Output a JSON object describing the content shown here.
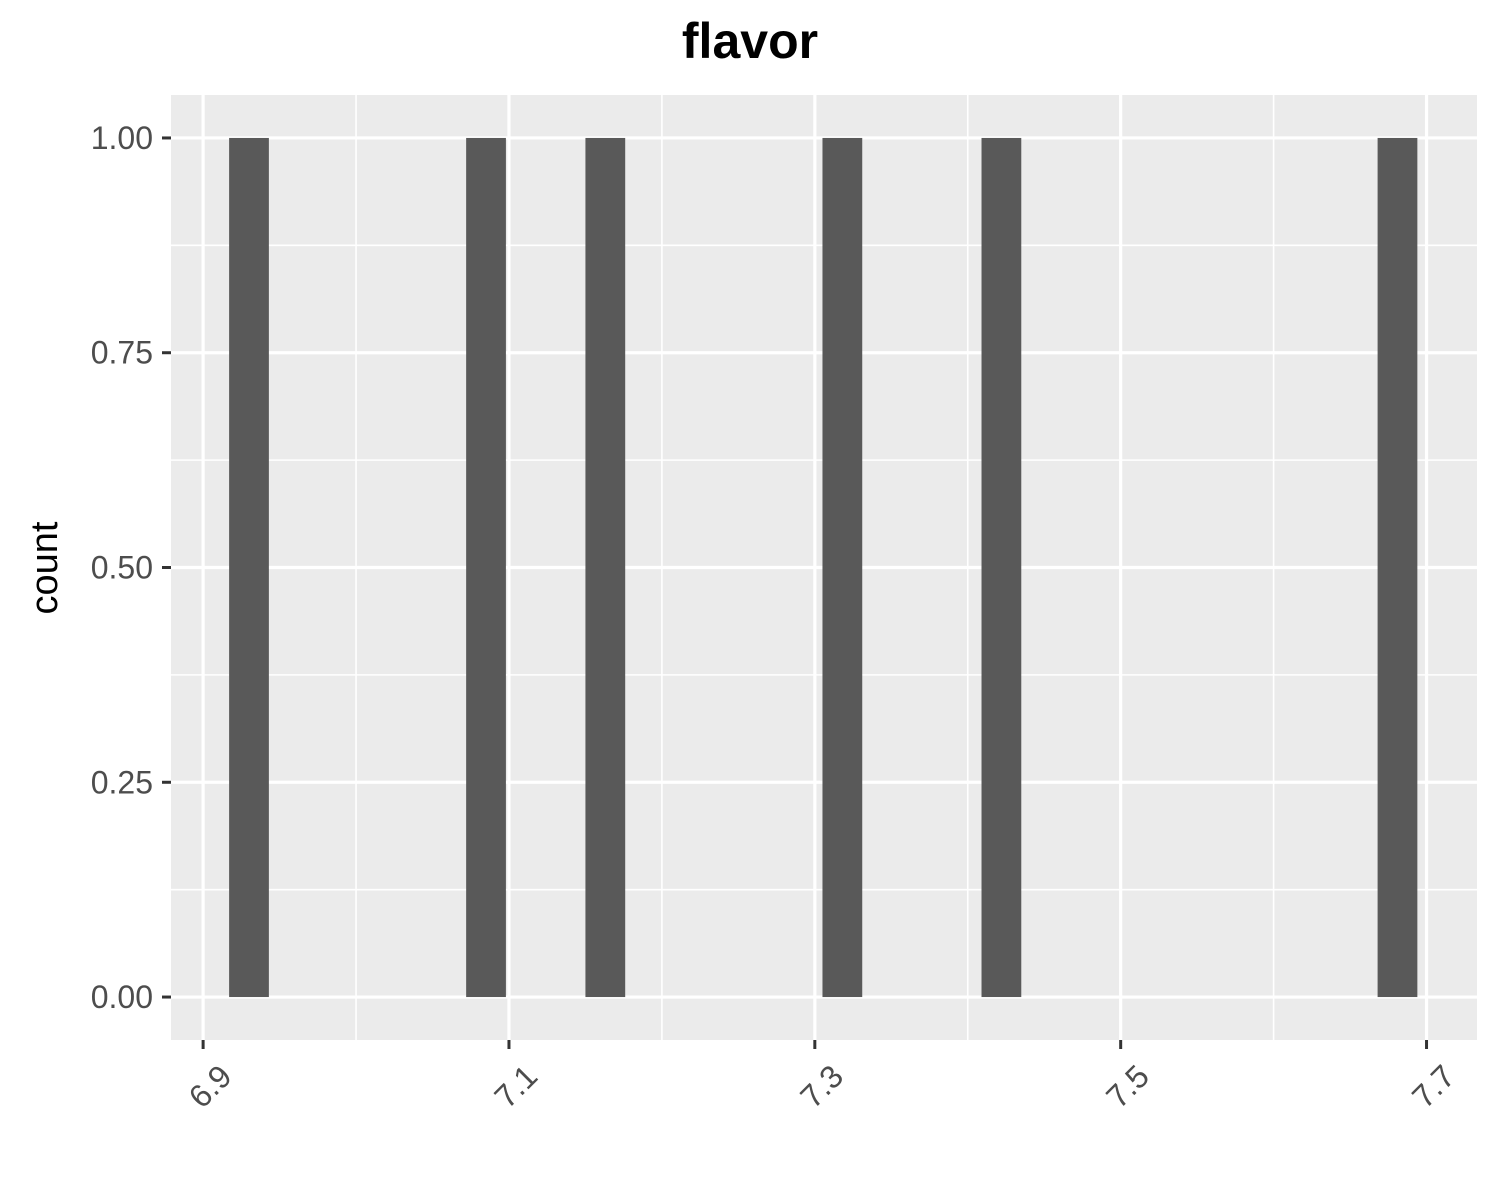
{
  "chart_data": {
    "type": "bar",
    "title": "flavor",
    "xlabel": "",
    "ylabel": "count",
    "x": [
      6.93,
      7.085,
      7.163,
      7.318,
      7.422,
      7.681
    ],
    "values": [
      1,
      1,
      1,
      1,
      1,
      1
    ],
    "bin_width": 0.026,
    "xlim": [
      6.879,
      7.733
    ],
    "ylim": [
      -0.05,
      1.05
    ],
    "x_ticks": [
      "6.9",
      "7.1",
      "7.3",
      "7.5",
      "7.7"
    ],
    "y_ticks": [
      "0.00",
      "0.25",
      "0.50",
      "0.75",
      "1.00"
    ],
    "grid": true,
    "colors": {
      "panel": "#ebebeb",
      "bar": "#595959",
      "grid": "#ffffff",
      "tick_text": "#4d4d4d",
      "tick_mark": "#333333"
    }
  }
}
